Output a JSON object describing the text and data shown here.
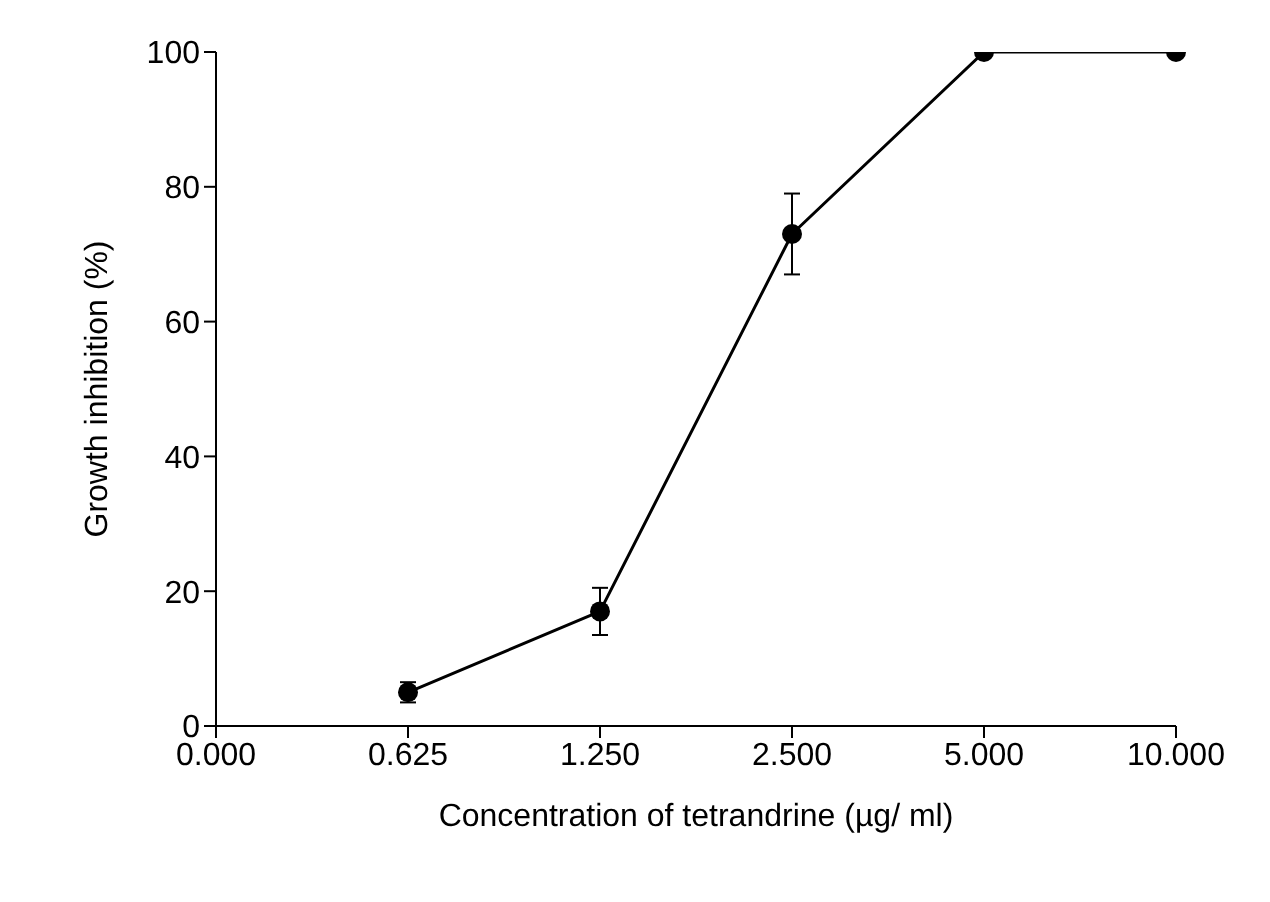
{
  "chart_data": {
    "type": "line",
    "xlabel": "Concentration of tetrandrine (µg/ ml)",
    "ylabel": "Growth inhibition (%)",
    "categories": [
      "0.000",
      "0.625",
      "1.250",
      "2.500",
      "5.000",
      "10.000"
    ],
    "series": [
      {
        "color": "#000000",
        "values": [
          null,
          5,
          17,
          73,
          100,
          100
        ],
        "errors": [
          null,
          1.5,
          3.5,
          6,
          null,
          null
        ]
      }
    ],
    "ylim": [
      0,
      100
    ],
    "yticks": [
      0,
      20,
      40,
      60,
      80,
      100
    ],
    "grid": false,
    "legend": false,
    "marker": "circle",
    "line_style": "solid"
  }
}
